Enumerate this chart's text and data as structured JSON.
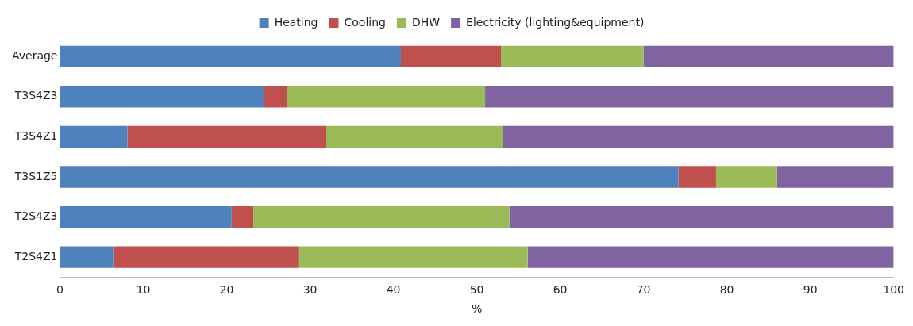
{
  "chart_data": {
    "type": "bar",
    "orientation": "horizontal",
    "stacked": true,
    "xlabel": "%",
    "categories": [
      "Average",
      "T3S4Z3",
      "T3S4Z1",
      "T3S1Z5",
      "T2S4Z3",
      "T2S4Z1"
    ],
    "series": [
      {
        "name": "Heating",
        "color": "#4f81bd",
        "values": [
          40.9,
          24.5,
          8.1,
          74.2,
          20.6,
          6.4
        ]
      },
      {
        "name": "Cooling",
        "color": "#c0504d",
        "values": [
          12.0,
          2.7,
          23.8,
          4.5,
          2.6,
          22.2
        ]
      },
      {
        "name": "DHW",
        "color": "#9bbb59",
        "values": [
          17.1,
          23.8,
          21.2,
          7.3,
          30.7,
          27.5
        ]
      },
      {
        "name": "Electricity (lighting&equipment)",
        "color": "#8064a2",
        "values": [
          30.0,
          49.0,
          46.9,
          14.0,
          46.1,
          43.9
        ]
      }
    ],
    "xlim": [
      0,
      100
    ],
    "xticks": [
      0,
      10,
      20,
      30,
      40,
      50,
      60,
      70,
      80,
      90,
      100
    ],
    "grid": false,
    "legend": "top"
  }
}
